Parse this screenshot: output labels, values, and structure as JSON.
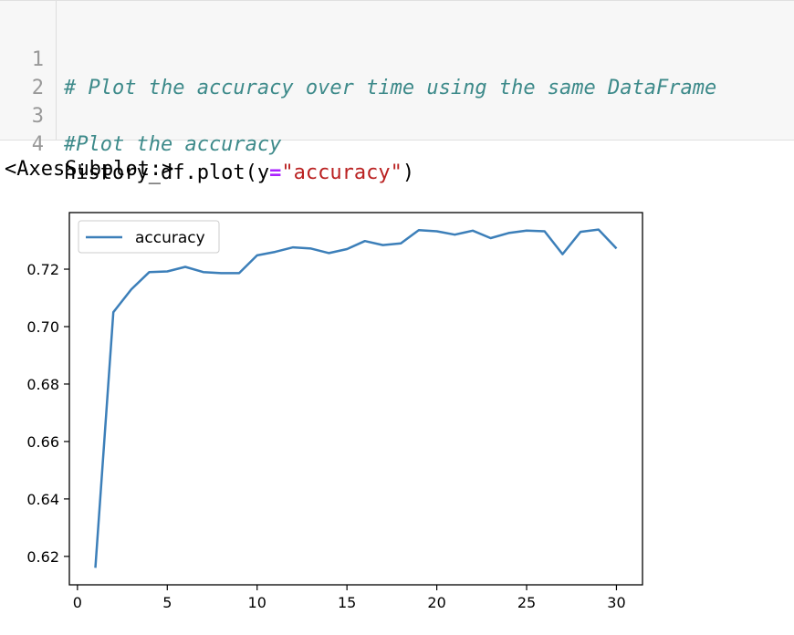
{
  "cell": {
    "lines": [
      {
        "number": "1",
        "comment": "# Plot the accuracy over time using the same DataFrame"
      },
      {
        "number": "2"
      },
      {
        "number": "3",
        "comment": "#Plot the accuracy"
      },
      {
        "number": "4",
        "code_prefix": "history_df.plot(y",
        "operator": "=",
        "string": "\"accuracy\"",
        "code_suffix": ")"
      }
    ]
  },
  "output": {
    "text": "<AxesSubplot:>"
  },
  "colors": {
    "line": "#3c7fb9",
    "comment": "#3d8a8a",
    "operator": "#aa22ff",
    "string": "#ba2121"
  },
  "chart_data": {
    "type": "line",
    "x": [
      1,
      2,
      3,
      4,
      5,
      6,
      7,
      8,
      9,
      10,
      11,
      12,
      13,
      14,
      15,
      16,
      17,
      18,
      19,
      20,
      21,
      22,
      23,
      24,
      25,
      26,
      27,
      28,
      29,
      30
    ],
    "series": [
      {
        "name": "accuracy",
        "values": [
          0.616,
          0.705,
          0.713,
          0.719,
          0.7192,
          0.7208,
          0.719,
          0.7186,
          0.7186,
          0.7248,
          0.726,
          0.7276,
          0.7272,
          0.7256,
          0.727,
          0.7298,
          0.7284,
          0.729,
          0.7336,
          0.7332,
          0.732,
          0.7334,
          0.7308,
          0.7326,
          0.7334,
          0.7332,
          0.7252,
          0.733,
          0.7338,
          0.7272
        ]
      }
    ],
    "xticks": [
      0,
      5,
      10,
      15,
      20,
      25,
      30
    ],
    "xtick_labels": [
      "0",
      "5",
      "10",
      "15",
      "20",
      "25",
      "30"
    ],
    "yticks": [
      0.62,
      0.64,
      0.66,
      0.68,
      0.7,
      0.72
    ],
    "ytick_labels": [
      "0.62",
      "0.64",
      "0.66",
      "0.68",
      "0.70",
      "0.72"
    ],
    "xlim": [
      -0.45,
      31.45
    ],
    "ylim": [
      0.6101,
      0.7397
    ],
    "legend": "top-left",
    "grid": false
  }
}
